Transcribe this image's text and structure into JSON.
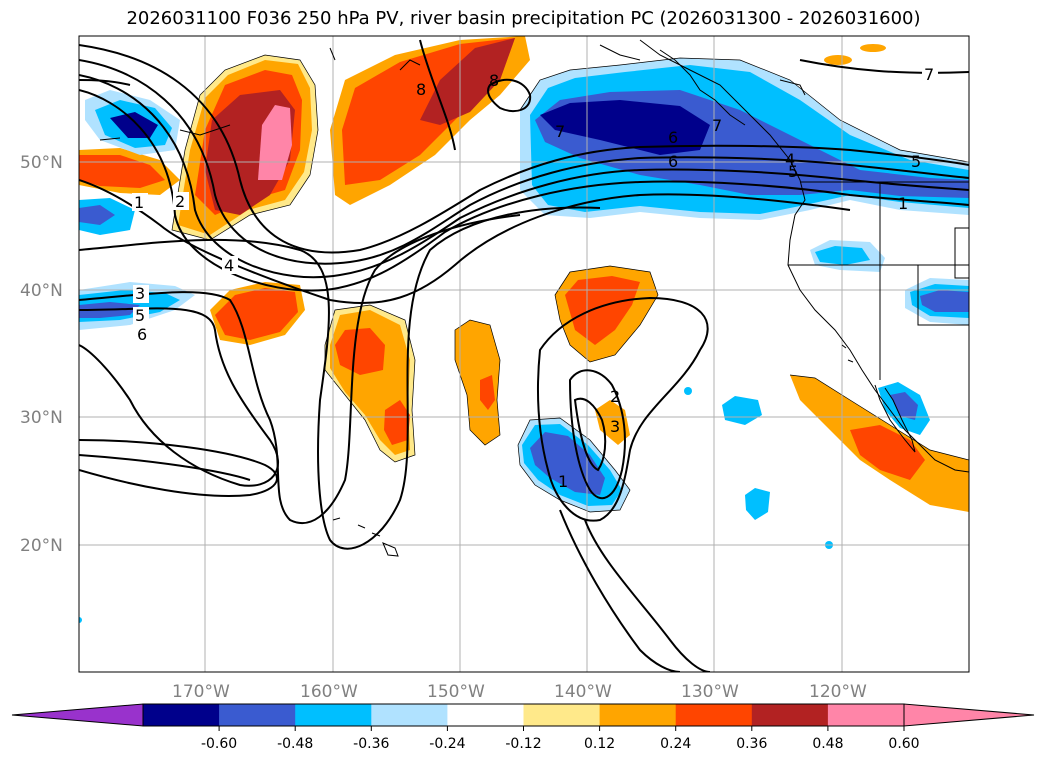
{
  "title": "2026031100 F036 250 hPa PV, river basin precipitation PC (2026031300 - 2026031600)",
  "lat_labels": [
    "50°N",
    "40°N",
    "30°N",
    "20°N"
  ],
  "lon_labels": [
    "170°W",
    "160°W",
    "150°W",
    "140°W",
    "130°W",
    "120°W"
  ],
  "contour_labels": [
    "1",
    "2",
    "4",
    "3",
    "5",
    "6",
    "7",
    "8",
    "6",
    "6",
    "8",
    "7",
    "5",
    "4",
    "1",
    "1",
    "2",
    "3",
    "7",
    "5"
  ],
  "colorbar": {
    "ticks": [
      "-0.60",
      "-0.48",
      "-0.36",
      "-0.24",
      "-0.12",
      "0.12",
      "0.24",
      "0.36",
      "0.48",
      "0.60"
    ],
    "colors": {
      "under": "#9932cc",
      "bins": [
        "#00008b",
        "#3a5bd0",
        "#00bfff",
        "#b0e2ff",
        "#ffffff",
        "#ffe98a",
        "#ffa500",
        "#ff4500",
        "#b22222",
        "#ff85a8"
      ],
      "over": "#ff85a8"
    }
  }
}
